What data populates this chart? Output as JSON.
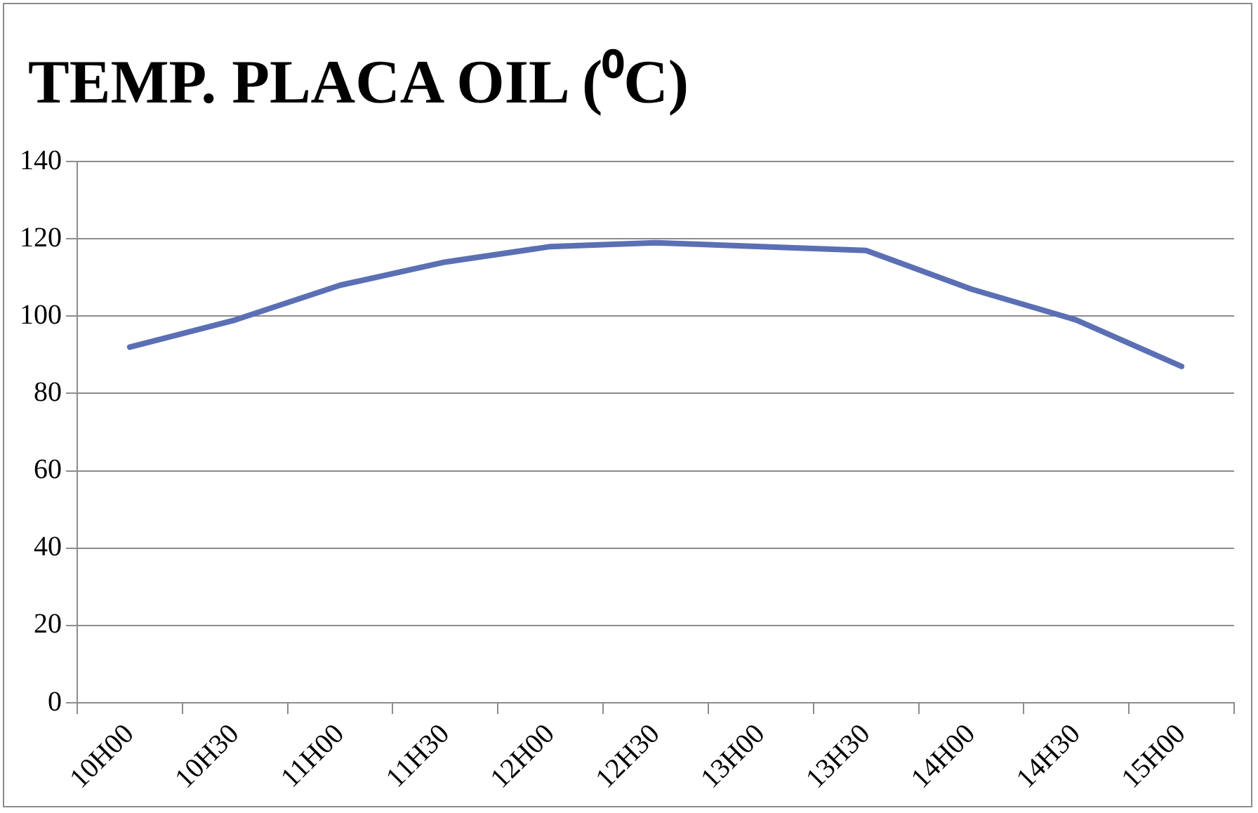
{
  "chart_data": {
    "type": "line",
    "title": "TEMP. PLACA OIL (⁰C)",
    "categories": [
      "10H00",
      "10H30",
      "11H00",
      "11H30",
      "12H00",
      "12H30",
      "13H00",
      "13H30",
      "14H00",
      "14H30",
      "15H00"
    ],
    "series": [
      {
        "color": "#5b6fb4",
        "values": [
          92,
          99,
          108,
          114,
          118,
          119,
          118,
          117,
          107,
          99,
          87
        ]
      }
    ],
    "ylim": [
      0,
      140
    ],
    "yticks": [
      0,
      20,
      40,
      60,
      80,
      100,
      120,
      140
    ],
    "grid": "y",
    "legend": false,
    "marker": "none",
    "line_style": "solid"
  }
}
